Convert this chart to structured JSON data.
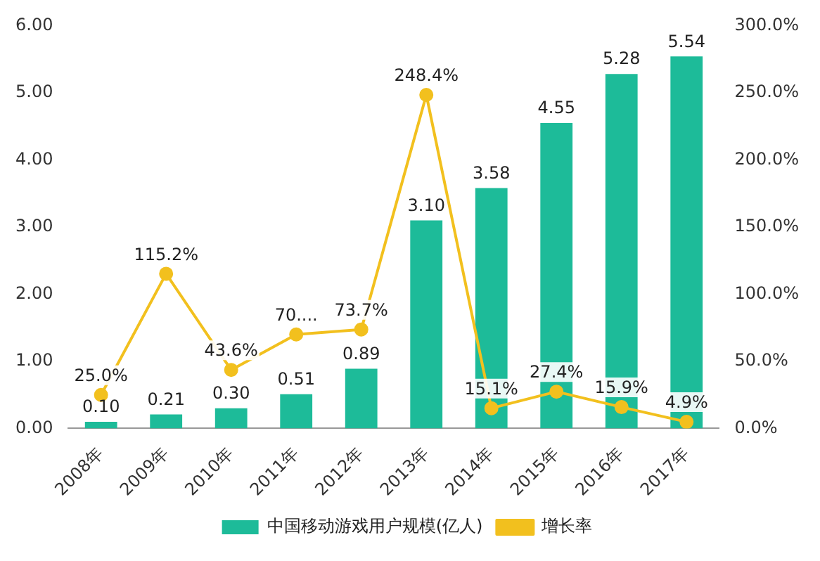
{
  "chart_data": {
    "type": "bar",
    "categories": [
      "2008年",
      "2009年",
      "2010年",
      "2011年",
      "2012年",
      "2013年",
      "2014年",
      "2015年",
      "2016年",
      "2017年"
    ],
    "series": [
      {
        "name": "中国移动游戏用户规模(亿人)",
        "color": "#1dbb99",
        "values": [
          0.1,
          0.21,
          0.3,
          0.51,
          0.89,
          3.1,
          3.58,
          4.55,
          5.28,
          5.54
        ],
        "value_labels": [
          "0.10",
          "0.21",
          "0.30",
          "0.51",
          "0.89",
          "3.10",
          "3.58",
          "4.55",
          "5.28",
          "5.54"
        ]
      },
      {
        "name": "增长率",
        "type": "line",
        "axis": "y2",
        "color": "#f2c01e",
        "values": [
          25.0,
          115.2,
          43.6,
          70,
          73.7,
          248.4,
          15.1,
          27.4,
          15.9,
          4.9
        ],
        "value_labels": [
          "25.0%",
          "115.2%",
          "43.6%",
          "70....",
          "73.7%",
          "248.4%",
          "15.1%",
          "27.4%",
          "15.9%",
          "4.9%"
        ]
      }
    ],
    "ylim": [
      0,
      6
    ],
    "yticks": [
      {
        "value": 0,
        "label": "0.00"
      },
      {
        "value": 1,
        "label": "1.00"
      },
      {
        "value": 2,
        "label": "2.00"
      },
      {
        "value": 3,
        "label": "3.00"
      },
      {
        "value": 4,
        "label": "4.00"
      },
      {
        "value": 5,
        "label": "5.00"
      },
      {
        "value": 6,
        "label": "6.00"
      }
    ],
    "y2lim": [
      0,
      300
    ],
    "y2ticks": [
      {
        "value": 0,
        "label": "0.0%"
      },
      {
        "value": 50,
        "label": "50.0%"
      },
      {
        "value": 100,
        "label": "100.0%"
      },
      {
        "value": 150,
        "label": "150.0%"
      },
      {
        "value": 200,
        "label": "200.0%"
      },
      {
        "value": 250,
        "label": "250.0%"
      },
      {
        "value": 300,
        "label": "300.0%"
      }
    ],
    "grid": false,
    "legend": "bottom",
    "marker": "circle",
    "line_style": "solid"
  }
}
